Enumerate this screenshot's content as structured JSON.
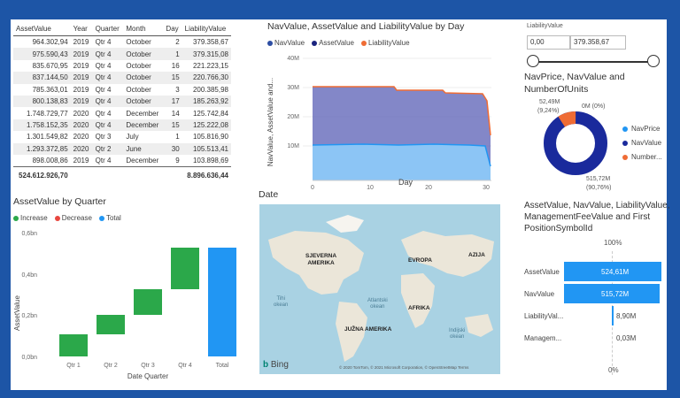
{
  "table": {
    "columns": [
      "AssetValue",
      "Year",
      "Quarter",
      "Month",
      "Day",
      "LiabilityValue"
    ],
    "rows": [
      [
        "964.302,94",
        "2019",
        "Qtr 4",
        "October",
        "2",
        "379.358,67"
      ],
      [
        "975.590,43",
        "2019",
        "Qtr 4",
        "October",
        "1",
        "379.315,08"
      ],
      [
        "835.670,95",
        "2019",
        "Qtr 4",
        "October",
        "16",
        "221.223,15"
      ],
      [
        "837.144,50",
        "2019",
        "Qtr 4",
        "October",
        "15",
        "220.766,30"
      ],
      [
        "785.363,01",
        "2019",
        "Qtr 4",
        "October",
        "3",
        "200.385,98"
      ],
      [
        "800.138,83",
        "2019",
        "Qtr 4",
        "October",
        "17",
        "185.263,92"
      ],
      [
        "1.748.729,77",
        "2020",
        "Qtr 4",
        "December",
        "14",
        "125.742,84"
      ],
      [
        "1.758.152,35",
        "2020",
        "Qtr 4",
        "December",
        "15",
        "125.222,08"
      ],
      [
        "1.301.549,82",
        "2020",
        "Qtr 3",
        "July",
        "1",
        "105.816,90"
      ],
      [
        "1.293.372,85",
        "2020",
        "Qtr 2",
        "June",
        "30",
        "105.513,41"
      ],
      [
        "898.008,86",
        "2019",
        "Qtr 4",
        "December",
        "9",
        "103.898,69"
      ]
    ],
    "total_asset": "524.612.926,70",
    "total_liability": "8.896.636,44"
  },
  "waterfall": {
    "title": "AssetValue by Quarter",
    "legend": [
      {
        "label": "Increase",
        "color": "#2ba84a"
      },
      {
        "label": "Decrease",
        "color": "#e8473f"
      },
      {
        "label": "Total",
        "color": "#2196f3"
      }
    ],
    "ylabel": "AssetValue",
    "xlabel": "Date Quarter",
    "yticks": [
      "0,6bn",
      "0,4bn",
      "0,2bn",
      "0,0bn"
    ],
    "categories": [
      "Qtr 1",
      "Qtr 2",
      "Qtr 3",
      "Qtr 4",
      "Total"
    ]
  },
  "area": {
    "title": "NavValue, AssetValue and LiabilityValue by Day",
    "legend": [
      {
        "label": "NavValue",
        "color": "#2d4ea3"
      },
      {
        "label": "AssetValue",
        "color": "#1a237e"
      },
      {
        "label": "LiabilityValue",
        "color": "#ef6c35"
      }
    ],
    "ylabel": "NavValue, AssetValue and...",
    "xlabel": "Day",
    "yticks": [
      "40M",
      "30M",
      "20M",
      "10M"
    ],
    "xticks": [
      "0",
      "10",
      "20",
      "30"
    ]
  },
  "slicer": {
    "title": "LiabilityValue",
    "min": "0,00",
    "max": "379.358,67"
  },
  "donut": {
    "title_line1": "NavPrice, NavValue and",
    "title_line2": "NumberOfUnits",
    "label_top_left_1": "52,49M",
    "label_top_left_2": "(9,24%)",
    "label_top_right": "0M (0%)",
    "label_bottom_1": "515,72M",
    "label_bottom_2": "(90,76%)",
    "legend": [
      {
        "label": "NavPrice",
        "color": "#2196f3"
      },
      {
        "label": "NavValue",
        "color": "#1a2a9c"
      },
      {
        "label": "Number...",
        "color": "#ef6c35"
      }
    ]
  },
  "map": {
    "title": "Date",
    "labels": {
      "na": "SJEVERNA\nAMERIKA",
      "eu": "EVROPA",
      "asia": "AZIJA",
      "africa": "AFRIKA",
      "sa": "JUŽNA AMERIKA",
      "pacific": "Tihi\nokean",
      "atlantic": "Atlantski\nokean",
      "indian": "Indijski\nokean"
    },
    "bing": "Bing",
    "copyright": "© 2020 TomTom, © 2021 Microsoft Corporation, © OpenStreetMap Terms"
  },
  "multirow": {
    "title_line1": "AssetValue, NavValue, LiabilityValue,",
    "title_line2": "ManagementFeeValue and First",
    "title_line3": "PositionSymbolId",
    "top_pct": "100%",
    "bottom_pct": "0%",
    "rows": [
      {
        "label": "AssetValue",
        "value": "524,61M"
      },
      {
        "label": "NavValue",
        "value": "515,72M"
      },
      {
        "label": "LiabilityVal...",
        "value": "8,90M"
      },
      {
        "label": "Managem...",
        "value": "0,03M"
      }
    ],
    "bar_color": "#2196f3"
  }
}
